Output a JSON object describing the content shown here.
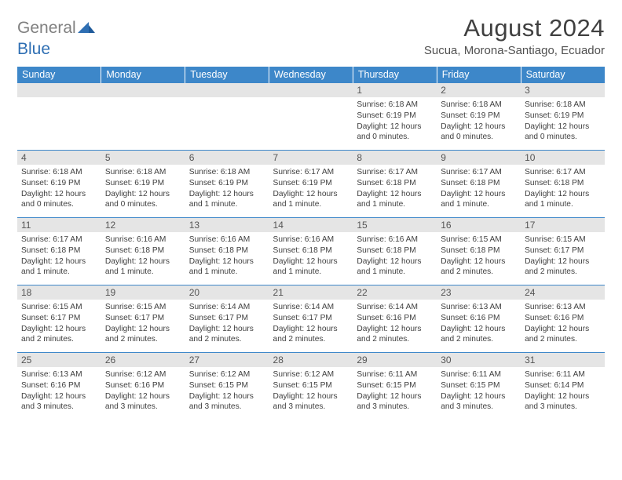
{
  "logo": {
    "text_grey": "General",
    "text_blue": "Blue"
  },
  "header": {
    "month_title": "August 2024",
    "location": "Sucua, Morona-Santiago, Ecuador"
  },
  "colors": {
    "header_bg": "#3d87c9",
    "header_fg": "#ffffff",
    "daynum_bg": "#e5e5e5",
    "daynum_fg": "#555555",
    "cell_border": "#3d87c9",
    "body_text": "#404040",
    "logo_grey": "#808080",
    "logo_blue": "#2f6fb3"
  },
  "weekdays": [
    "Sunday",
    "Monday",
    "Tuesday",
    "Wednesday",
    "Thursday",
    "Friday",
    "Saturday"
  ],
  "weeks": [
    [
      null,
      null,
      null,
      null,
      {
        "n": "1",
        "sr": "6:18 AM",
        "ss": "6:19 PM",
        "dl": "12 hours and 0 minutes."
      },
      {
        "n": "2",
        "sr": "6:18 AM",
        "ss": "6:19 PM",
        "dl": "12 hours and 0 minutes."
      },
      {
        "n": "3",
        "sr": "6:18 AM",
        "ss": "6:19 PM",
        "dl": "12 hours and 0 minutes."
      }
    ],
    [
      {
        "n": "4",
        "sr": "6:18 AM",
        "ss": "6:19 PM",
        "dl": "12 hours and 0 minutes."
      },
      {
        "n": "5",
        "sr": "6:18 AM",
        "ss": "6:19 PM",
        "dl": "12 hours and 0 minutes."
      },
      {
        "n": "6",
        "sr": "6:18 AM",
        "ss": "6:19 PM",
        "dl": "12 hours and 1 minute."
      },
      {
        "n": "7",
        "sr": "6:17 AM",
        "ss": "6:19 PM",
        "dl": "12 hours and 1 minute."
      },
      {
        "n": "8",
        "sr": "6:17 AM",
        "ss": "6:18 PM",
        "dl": "12 hours and 1 minute."
      },
      {
        "n": "9",
        "sr": "6:17 AM",
        "ss": "6:18 PM",
        "dl": "12 hours and 1 minute."
      },
      {
        "n": "10",
        "sr": "6:17 AM",
        "ss": "6:18 PM",
        "dl": "12 hours and 1 minute."
      }
    ],
    [
      {
        "n": "11",
        "sr": "6:17 AM",
        "ss": "6:18 PM",
        "dl": "12 hours and 1 minute."
      },
      {
        "n": "12",
        "sr": "6:16 AM",
        "ss": "6:18 PM",
        "dl": "12 hours and 1 minute."
      },
      {
        "n": "13",
        "sr": "6:16 AM",
        "ss": "6:18 PM",
        "dl": "12 hours and 1 minute."
      },
      {
        "n": "14",
        "sr": "6:16 AM",
        "ss": "6:18 PM",
        "dl": "12 hours and 1 minute."
      },
      {
        "n": "15",
        "sr": "6:16 AM",
        "ss": "6:18 PM",
        "dl": "12 hours and 1 minute."
      },
      {
        "n": "16",
        "sr": "6:15 AM",
        "ss": "6:18 PM",
        "dl": "12 hours and 2 minutes."
      },
      {
        "n": "17",
        "sr": "6:15 AM",
        "ss": "6:17 PM",
        "dl": "12 hours and 2 minutes."
      }
    ],
    [
      {
        "n": "18",
        "sr": "6:15 AM",
        "ss": "6:17 PM",
        "dl": "12 hours and 2 minutes."
      },
      {
        "n": "19",
        "sr": "6:15 AM",
        "ss": "6:17 PM",
        "dl": "12 hours and 2 minutes."
      },
      {
        "n": "20",
        "sr": "6:14 AM",
        "ss": "6:17 PM",
        "dl": "12 hours and 2 minutes."
      },
      {
        "n": "21",
        "sr": "6:14 AM",
        "ss": "6:17 PM",
        "dl": "12 hours and 2 minutes."
      },
      {
        "n": "22",
        "sr": "6:14 AM",
        "ss": "6:16 PM",
        "dl": "12 hours and 2 minutes."
      },
      {
        "n": "23",
        "sr": "6:13 AM",
        "ss": "6:16 PM",
        "dl": "12 hours and 2 minutes."
      },
      {
        "n": "24",
        "sr": "6:13 AM",
        "ss": "6:16 PM",
        "dl": "12 hours and 2 minutes."
      }
    ],
    [
      {
        "n": "25",
        "sr": "6:13 AM",
        "ss": "6:16 PM",
        "dl": "12 hours and 3 minutes."
      },
      {
        "n": "26",
        "sr": "6:12 AM",
        "ss": "6:16 PM",
        "dl": "12 hours and 3 minutes."
      },
      {
        "n": "27",
        "sr": "6:12 AM",
        "ss": "6:15 PM",
        "dl": "12 hours and 3 minutes."
      },
      {
        "n": "28",
        "sr": "6:12 AM",
        "ss": "6:15 PM",
        "dl": "12 hours and 3 minutes."
      },
      {
        "n": "29",
        "sr": "6:11 AM",
        "ss": "6:15 PM",
        "dl": "12 hours and 3 minutes."
      },
      {
        "n": "30",
        "sr": "6:11 AM",
        "ss": "6:15 PM",
        "dl": "12 hours and 3 minutes."
      },
      {
        "n": "31",
        "sr": "6:11 AM",
        "ss": "6:14 PM",
        "dl": "12 hours and 3 minutes."
      }
    ]
  ],
  "labels": {
    "sunrise": "Sunrise:",
    "sunset": "Sunset:",
    "daylight": "Daylight:"
  }
}
